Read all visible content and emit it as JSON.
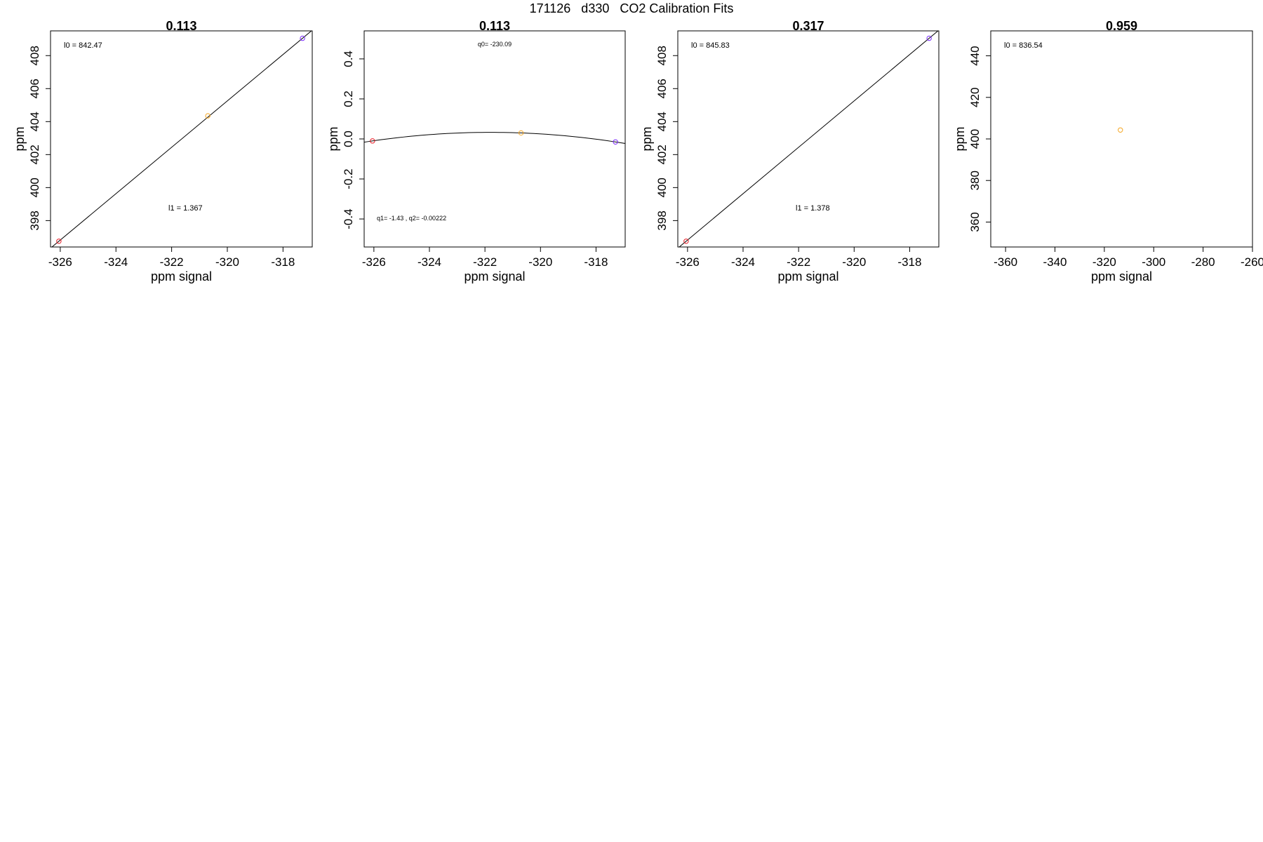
{
  "page_title": "171126   d330   CO2 Calibration Fits",
  "colors": {
    "red": "#e8202a",
    "orange": "#f5a623",
    "purple": "#7b2cff",
    "line": "#000000"
  },
  "chart_data": [
    {
      "type": "scatter",
      "title": "0.113",
      "xlabel": "ppm signal",
      "ylabel": "ppm",
      "xlim": [
        -326.35,
        -316.95
      ],
      "ylim": [
        396.4,
        409.5
      ],
      "xticks": [
        -326,
        -324,
        -322,
        -320,
        -318
      ],
      "yticks": [
        398,
        400,
        402,
        404,
        406,
        408
      ],
      "points": [
        {
          "x": -326.05,
          "y": 396.75,
          "color": "red"
        },
        {
          "x": -320.7,
          "y": 404.35,
          "color": "orange"
        },
        {
          "x": -317.3,
          "y": 409.05,
          "color": "purple"
        }
      ],
      "fit": {
        "kind": "linear",
        "intercept": 842.47,
        "slope": 1.367
      },
      "annotations": [
        {
          "label": "l0 =",
          "value": "842.47",
          "pos": "top-left"
        },
        {
          "label": "l1 =",
          "value": "1.367",
          "pos": "lower-middle"
        }
      ]
    },
    {
      "type": "scatter",
      "title": "0.113",
      "xlabel": "ppm signal",
      "ylabel": "ppm",
      "xlim": [
        -326.35,
        -316.95
      ],
      "ylim": [
        -0.54,
        0.54
      ],
      "xticks": [
        -326,
        -324,
        -322,
        -320,
        -318
      ],
      "yticks": [
        -0.4,
        -0.2,
        0.0,
        0.2,
        0.4
      ],
      "tick_text": [
        "-0.4",
        "-0.2",
        "0.0",
        "0.2",
        "0.4"
      ],
      "points": [
        {
          "x": -326.05,
          "y": -0.01,
          "color": "red"
        },
        {
          "x": -320.7,
          "y": 0.03,
          "color": "orange"
        },
        {
          "x": -317.3,
          "y": -0.015,
          "color": "purple"
        }
      ],
      "fit": {
        "kind": "quadratic",
        "q0": -230.09,
        "q1": -1.43,
        "q2": -0.00222
      },
      "annotations": [
        {
          "label": "q0=",
          "value": "-230.09",
          "pos": "top-center"
        },
        {
          "label": "q1=",
          "value": "-1.43 , q2= -0.00222",
          "pos": "bottom-left"
        }
      ]
    },
    {
      "type": "scatter",
      "title": "0.317",
      "xlabel": "ppm signal",
      "ylabel": "ppm",
      "xlim": [
        -326.35,
        -316.95
      ],
      "ylim": [
        396.4,
        409.5
      ],
      "xticks": [
        -326,
        -324,
        -322,
        -320,
        -318
      ],
      "yticks": [
        398,
        400,
        402,
        404,
        406,
        408
      ],
      "points": [
        {
          "x": -326.05,
          "y": 396.75,
          "color": "red"
        },
        {
          "x": -317.3,
          "y": 409.05,
          "color": "purple"
        }
      ],
      "fit": {
        "kind": "linear",
        "intercept": 845.83,
        "slope": 1.378
      },
      "annotations": [
        {
          "label": "l0 =",
          "value": "845.83",
          "pos": "top-left"
        },
        {
          "label": "l1 =",
          "value": "1.378",
          "pos": "lower-middle"
        }
      ]
    },
    {
      "type": "scatter",
      "title": "0.959",
      "xlabel": "ppm signal",
      "ylabel": "ppm",
      "xlim": [
        -366,
        -260
      ],
      "ylim": [
        348,
        452
      ],
      "xticks": [
        -360,
        -340,
        -320,
        -300,
        -280,
        -260
      ],
      "yticks": [
        360,
        380,
        400,
        420,
        440
      ],
      "points": [
        {
          "x": -313.5,
          "y": 404.3,
          "color": "orange"
        }
      ],
      "annotations": [
        {
          "label": "l0 =",
          "value": "836.54",
          "pos": "top-left"
        }
      ]
    }
  ]
}
